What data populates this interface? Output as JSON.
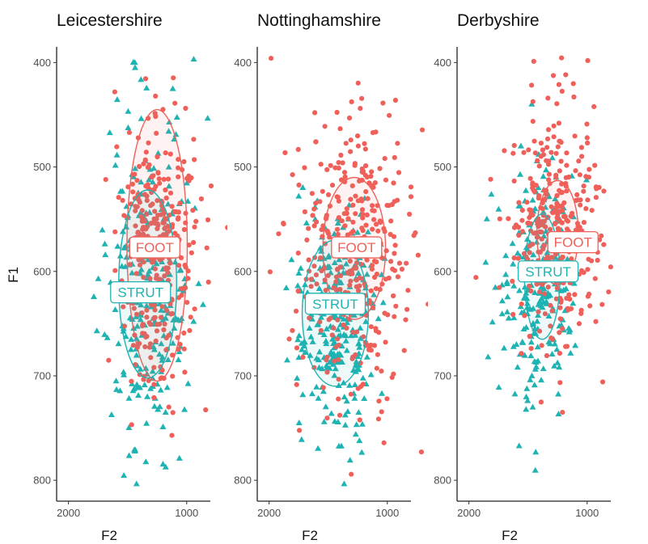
{
  "chart_data": {
    "type": "scatter",
    "xlabel": "F2",
    "ylabel": "F1",
    "xlim": [
      2100,
      800
    ],
    "ylim": [
      820,
      385
    ],
    "x_ticks": [
      2000,
      1000
    ],
    "y_ticks": [
      400,
      500,
      600,
      700,
      800
    ],
    "x_reversed": true,
    "y_reversed": true,
    "grid": false,
    "colors": {
      "FOOT": "#F0605A",
      "STRUT": "#1FB3B3"
    },
    "panels": [
      {
        "title": "Leicestershire",
        "groups": [
          {
            "name": "FOOT",
            "shape": "circle",
            "center": [
              1250,
              575
            ],
            "spread": [
              170,
              65
            ],
            "n": 340,
            "ellipse": {
              "cx": 1250,
              "cy": 575,
              "rx": 255,
              "ry": 130
            },
            "label_pos": [
              1270,
              577
            ]
          },
          {
            "name": "STRUT",
            "shape": "triangle",
            "center": [
              1330,
              612
            ],
            "spread": [
              195,
              78
            ],
            "n": 270,
            "ellipse": {
              "cx": 1330,
              "cy": 612,
              "rx": 245,
              "ry": 90
            },
            "label_pos": [
              1390,
              620
            ]
          }
        ]
      },
      {
        "title": "Nottinghamshire",
        "groups": [
          {
            "name": "FOOT",
            "shape": "circle",
            "center": [
              1270,
              580
            ],
            "spread": [
              260,
              70
            ],
            "n": 360,
            "ellipse": {
              "cx": 1280,
              "cy": 578,
              "rx": 265,
              "ry": 68
            },
            "label_pos": [
              1260,
              577
            ]
          },
          {
            "name": "STRUT",
            "shape": "triangle",
            "center": [
              1440,
              645
            ],
            "spread": [
              170,
              60
            ],
            "n": 260,
            "ellipse": {
              "cx": 1440,
              "cy": 640,
              "rx": 280,
              "ry": 70
            },
            "label_pos": [
              1440,
              631
            ]
          }
        ]
      },
      {
        "title": "Derbyshire",
        "groups": [
          {
            "name": "FOOT",
            "shape": "circle",
            "center": [
              1260,
              565
            ],
            "spread": [
              190,
              58
            ],
            "n": 340,
            "ellipse": {
              "cx": 1250,
              "cy": 563,
              "rx": 175,
              "ry": 50
            },
            "label_pos": [
              1120,
              572
            ]
          },
          {
            "name": "STRUT",
            "shape": "triangle",
            "center": [
              1400,
              610
            ],
            "spread": [
              155,
              60
            ],
            "n": 230,
            "ellipse": {
              "cx": 1380,
              "cy": 605,
              "rx": 150,
              "ry": 60
            },
            "label_pos": [
              1330,
              600
            ]
          }
        ]
      }
    ]
  }
}
